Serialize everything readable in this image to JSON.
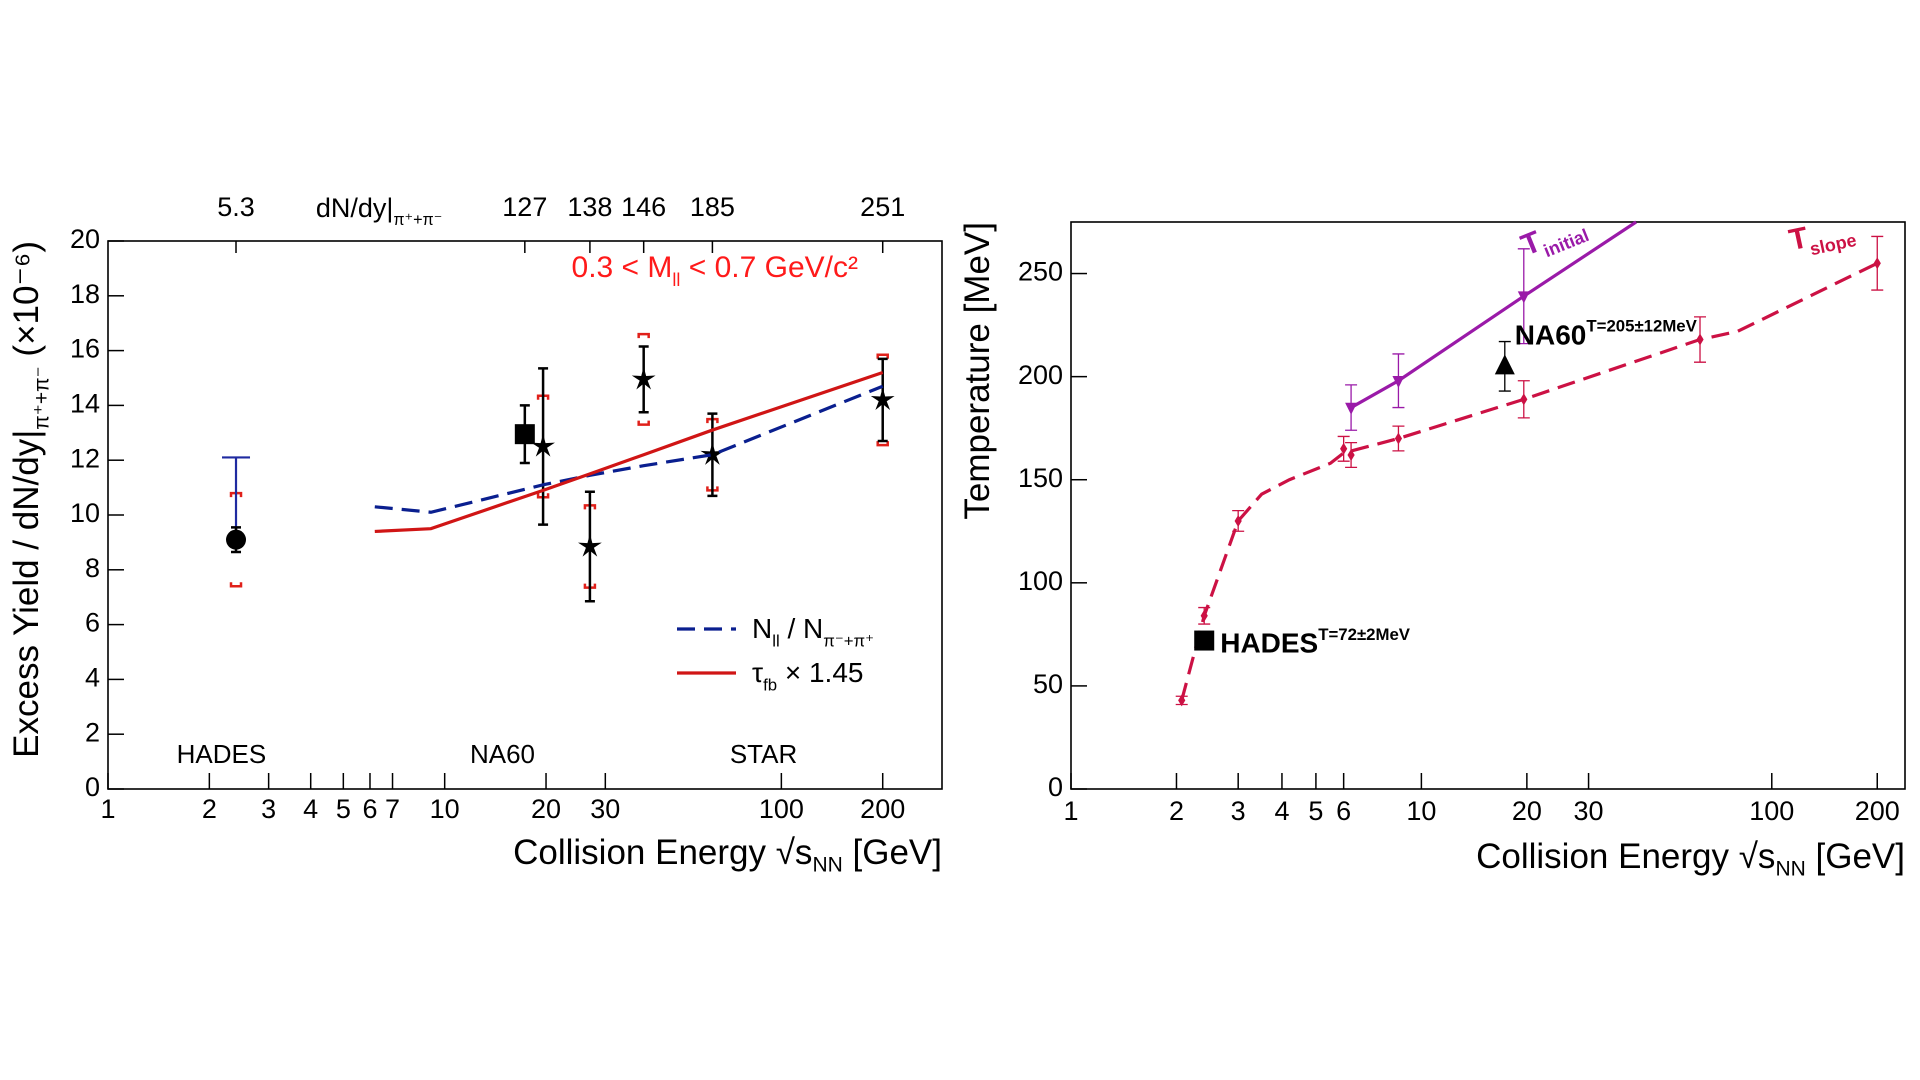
{
  "chart_data": [
    {
      "type": "scatter",
      "xscale": "log",
      "xlim": [
        1,
        300
      ],
      "ylim": [
        0,
        20
      ],
      "xticks": [
        1,
        2,
        3,
        4,
        5,
        6,
        7,
        10,
        20,
        30,
        100,
        200
      ],
      "yticks": [
        0,
        2,
        4,
        6,
        8,
        10,
        12,
        14,
        16,
        18,
        20
      ],
      "xlabel": [
        "Collision Energy  √s",
        "NN",
        " [GeV]"
      ],
      "ylabel": [
        "Excess Yield / dN/dy|",
        "π⁺+π⁻",
        " (×10⁻⁶)"
      ],
      "x2ticks": [
        {
          "value": 2.4,
          "label": "5.3"
        },
        {
          "value": 17.3,
          "label": "127"
        },
        {
          "value": 27,
          "label": "138"
        },
        {
          "value": 39,
          "label": "146"
        },
        {
          "value": 62.4,
          "label": "185"
        },
        {
          "value": 200,
          "label": "251"
        }
      ],
      "x2label": [
        "dN/dy|",
        "π⁺+π⁻"
      ],
      "annotation": [
        "0.3 < M",
        "ll",
        " < 0.7 GeV/c²"
      ],
      "annotation_color": "#ff1a1a",
      "legend": "lower right",
      "series": [
        {
          "name": "HADES",
          "marker": "circle",
          "color": "#000000",
          "x": [
            2.4
          ],
          "values": [
            9.1
          ],
          "errors": [
            0.45
          ],
          "sys": [
            1.7
          ],
          "sys_color": "#e0201a",
          "upper_errors": [
            3.0
          ],
          "upper_error_color": "#1f2aa0"
        },
        {
          "name": "NA60",
          "marker": "square",
          "color": "#000000",
          "x": [
            17.3
          ],
          "values": [
            12.95
          ],
          "errors": [
            1.05
          ]
        },
        {
          "name": "STAR",
          "marker": "star",
          "color": "#000000",
          "x": [
            19.6,
            27,
            39,
            62.4,
            200
          ],
          "values": [
            12.5,
            8.85,
            14.95,
            12.2,
            14.2
          ],
          "errors": [
            2.85,
            2.0,
            1.2,
            1.5,
            1.5
          ],
          "sys": [
            1.85,
            1.5,
            1.65,
            1.3,
            1.65
          ],
          "sys_color": "#e0201a"
        },
        {
          "name": [
            "N",
            "ll",
            " / N",
            "π⁻+π⁺"
          ],
          "style": "dashed",
          "color": "#0a1f8f",
          "x": [
            6.2,
            9.1,
            19.6,
            27,
            39,
            62.4,
            200
          ],
          "values": [
            10.3,
            10.1,
            11.1,
            11.45,
            11.8,
            12.2,
            14.7
          ]
        },
        {
          "name": [
            "τ",
            "fb",
            " × 1.45"
          ],
          "style": "solid",
          "color": "#d01515",
          "x": [
            6.2,
            9.1,
            19.6,
            27,
            39,
            62.4,
            200
          ],
          "values": [
            9.4,
            9.5,
            10.9,
            11.5,
            12.2,
            13.1,
            15.2
          ]
        }
      ]
    },
    {
      "type": "scatter",
      "xscale": "log",
      "xlim": [
        1,
        240
      ],
      "ylim": [
        0,
        275
      ],
      "xticks": [
        1,
        2,
        3,
        4,
        5,
        6,
        10,
        20,
        30,
        100,
        200
      ],
      "yticks": [
        0,
        50,
        100,
        150,
        200,
        250
      ],
      "xlabel": [
        "Collision Energy  √s",
        "NN",
        " [GeV]"
      ],
      "ylabel": "Temperature [MeV]",
      "series": [
        {
          "name": [
            "T",
            "slope"
          ],
          "style": "dashed",
          "color": "#cc1144",
          "x": [
            2.07,
            2.4,
            3,
            3.5,
            4.2,
            5.5,
            6,
            8.6,
            19.6,
            62.4,
            80,
            200
          ],
          "values": [
            43,
            84,
            130,
            143,
            150,
            158,
            163,
            170,
            189,
            218,
            222,
            255
          ]
        },
        {
          "name": [
            "T",
            "initial"
          ],
          "style": "solid",
          "color": "#9a1aa8",
          "x": [
            6.3,
            8.6,
            19.6,
            41
          ],
          "values": [
            185,
            198,
            239,
            275
          ]
        },
        {
          "marker": "diamond",
          "color": "#cc1144",
          "x": [
            2.07,
            2.4,
            3,
            6,
            6.3,
            8.6,
            19.6,
            62.4,
            200
          ],
          "values": [
            43,
            84,
            130,
            165,
            162,
            170,
            189,
            218,
            255
          ],
          "errors": [
            2,
            4,
            5,
            6,
            6,
            6,
            9,
            11,
            13
          ]
        },
        {
          "marker": "triangle-down",
          "color": "#9a1aa8",
          "x": [
            6.3,
            8.6,
            19.6
          ],
          "values": [
            185,
            198,
            239
          ],
          "errors": [
            11,
            13,
            23
          ]
        },
        {
          "name": [
            "HADES",
            "T=72±2MeV"
          ],
          "marker": "square",
          "color": "#000000",
          "x": [
            2.4
          ],
          "values": [
            72
          ]
        },
        {
          "name": [
            "NA60",
            "T=205±12MeV"
          ],
          "marker": "triangle",
          "color": "#000000",
          "x": [
            17.3
          ],
          "values": [
            205
          ],
          "errors": [
            12
          ]
        }
      ]
    }
  ]
}
